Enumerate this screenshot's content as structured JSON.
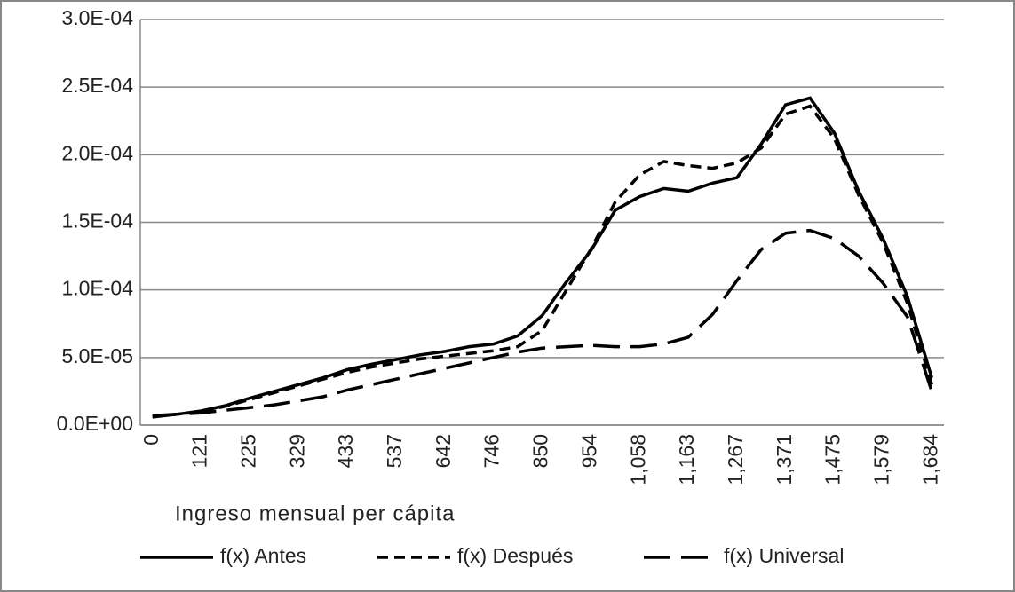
{
  "chart_data": {
    "type": "line",
    "x_label": "Ingreso mensual per cápita",
    "categories": [
      "0",
      null,
      "121",
      null,
      "225",
      null,
      "329",
      null,
      "433",
      null,
      "537",
      null,
      "642",
      null,
      "746",
      null,
      "850",
      null,
      "954",
      null,
      "1,058",
      null,
      "1,163",
      null,
      "1,267",
      null,
      "1,371",
      null,
      "1,475",
      null,
      "1,579",
      null,
      "1,684"
    ],
    "series": [
      {
        "name": "f(x) Antes",
        "color": "#000000",
        "dash": "solid",
        "values": [
          7e-06,
          8e-06,
          1.05e-05,
          1.45e-05,
          2e-05,
          2.5e-05,
          3e-05,
          3.5e-05,
          4.1e-05,
          4.5e-05,
          4.85e-05,
          5.2e-05,
          5.45e-05,
          5.8e-05,
          6e-05,
          6.6e-05,
          8.1e-05,
          0.000106,
          0.000129,
          0.000159,
          0.000169,
          0.000175,
          0.000173,
          0.000179,
          0.000183,
          0.000208,
          0.000237,
          0.000242,
          0.000216,
          0.000173,
          0.000138,
          9.5e-05,
          3.5e-05
        ]
      },
      {
        "name": "f(x) Después",
        "color": "#000000",
        "dash": "short",
        "values": [
          6.5e-06,
          8e-06,
          1e-05,
          1.4e-05,
          1.9e-05,
          2.4e-05,
          2.9e-05,
          3.4e-05,
          3.9e-05,
          4.3e-05,
          4.6e-05,
          4.9e-05,
          5.1e-05,
          5.3e-05,
          5.5e-05,
          5.8e-05,
          7e-05,
          0.0001,
          0.00013,
          0.000165,
          0.000185,
          0.000195,
          0.000192,
          0.00019,
          0.000194,
          0.000205,
          0.00023,
          0.000236,
          0.000212,
          0.00017,
          0.000135,
          9e-05,
          3e-05
        ]
      },
      {
        "name": "f(x) Universal",
        "color": "#000000",
        "dash": "long",
        "values": [
          6e-06,
          8e-06,
          9e-06,
          1.1e-05,
          1.3e-05,
          1.5e-05,
          1.8e-05,
          2.1e-05,
          2.6e-05,
          3e-05,
          3.4e-05,
          3.8e-05,
          4.2e-05,
          4.6e-05,
          5e-05,
          5.4e-05,
          5.7e-05,
          5.8e-05,
          5.9e-05,
          5.8e-05,
          5.8e-05,
          6e-05,
          6.5e-05,
          8.2e-05,
          0.000107,
          0.00013,
          0.000142,
          0.000144,
          0.000138,
          0.000125,
          0.000105,
          8e-05,
          2.5e-05
        ]
      }
    ],
    "ylim": [
      0,
      0.0003
    ],
    "yticks": [
      {
        "value": 0,
        "label": "0.0E+00"
      },
      {
        "value": 5e-05,
        "label": "5.0E-05"
      },
      {
        "value": 0.0001,
        "label": "1.0E-04"
      },
      {
        "value": 0.00015,
        "label": "1.5E-04"
      },
      {
        "value": 0.0002,
        "label": "2.0E-04"
      },
      {
        "value": 0.00025,
        "label": "2.5E-04"
      },
      {
        "value": 0.0003,
        "label": "3.0E-04"
      }
    ],
    "grid": true,
    "legend": "bottom"
  }
}
